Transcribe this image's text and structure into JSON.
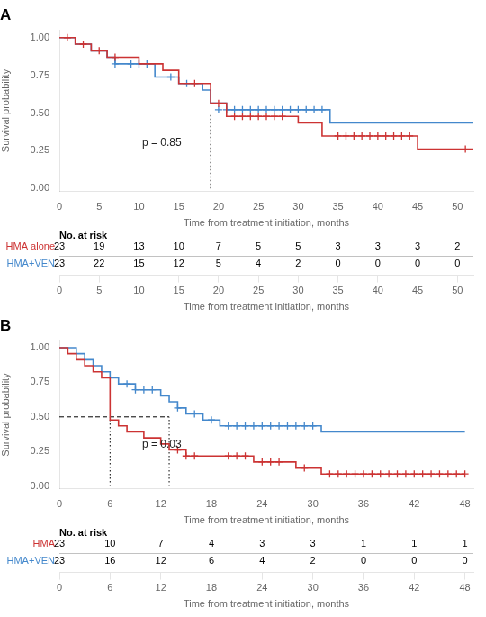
{
  "chart_data": [
    {
      "type": "step",
      "title": "A",
      "annotation": "p = 0.85",
      "xlabel": "Time from treatment initiation, months",
      "ylabel": "Survival probability",
      "xlim": [
        0,
        52
      ],
      "xticks": [
        0,
        5,
        10,
        15,
        20,
        25,
        30,
        35,
        40,
        45,
        50
      ],
      "ylim": [
        -0.02,
        1.05
      ],
      "yticks": [
        {
          "value": 0.0,
          "label": "0.00"
        },
        {
          "value": 0.25,
          "label": "0.25"
        },
        {
          "value": 0.5,
          "label": "0.50"
        },
        {
          "value": 0.75,
          "label": "0.75"
        },
        {
          "value": 1.0,
          "label": "1.00"
        }
      ],
      "grid": false,
      "median_x": [
        19
      ],
      "median_y": 0.5,
      "risk_table_title": "No. at risk",
      "risk_times": [
        0,
        5,
        10,
        15,
        20,
        25,
        30,
        35,
        40,
        45,
        50
      ],
      "series": [
        {
          "name": "HMA alone",
          "color": "#cc3333",
          "marker": "plus",
          "x": [
            0,
            2,
            4,
            6,
            10,
            13,
            15,
            19,
            21,
            30,
            33,
            45,
            52
          ],
          "values": [
            1.0,
            0.957,
            0.913,
            0.87,
            0.826,
            0.783,
            0.696,
            0.565,
            0.478,
            0.435,
            0.348,
            0.261,
            0.261
          ],
          "censor_x": [
            1,
            3,
            5,
            7,
            17,
            20,
            22,
            23,
            24,
            25,
            26,
            27,
            28,
            35,
            36,
            37,
            38,
            39,
            40,
            41,
            42,
            43,
            44,
            51
          ],
          "censor_values": [
            1.0,
            0.957,
            0.913,
            0.87,
            0.696,
            0.565,
            0.478,
            0.478,
            0.478,
            0.478,
            0.478,
            0.478,
            0.478,
            0.348,
            0.348,
            0.348,
            0.348,
            0.348,
            0.348,
            0.348,
            0.348,
            0.348,
            0.348,
            0.261
          ],
          "at_risk": [
            23,
            19,
            13,
            10,
            7,
            5,
            5,
            3,
            3,
            3,
            2
          ]
        },
        {
          "name": "HMA+VEN",
          "color": "#4488cc",
          "marker": "plus",
          "x": [
            0,
            2,
            4,
            6,
            7,
            12,
            15,
            18,
            19,
            21,
            34,
            52
          ],
          "values": [
            1.0,
            0.957,
            0.913,
            0.87,
            0.826,
            0.739,
            0.696,
            0.652,
            0.565,
            0.522,
            0.435,
            0.435
          ],
          "censor_x": [
            7,
            9,
            10,
            11,
            14,
            16,
            20,
            21,
            22,
            23,
            24,
            25,
            26,
            27,
            28,
            29,
            30,
            31,
            32,
            33
          ],
          "censor_values": [
            0.826,
            0.826,
            0.826,
            0.826,
            0.739,
            0.696,
            0.522,
            0.522,
            0.522,
            0.522,
            0.522,
            0.522,
            0.522,
            0.522,
            0.522,
            0.522,
            0.522,
            0.522,
            0.522,
            0.522
          ],
          "at_risk": [
            23,
            22,
            15,
            12,
            5,
            4,
            2,
            0,
            0,
            0,
            0
          ]
        }
      ]
    },
    {
      "type": "step",
      "title": "B",
      "annotation": "p = 0.03",
      "xlabel": "Time from treatment initiation, months",
      "ylabel": "Survival probability",
      "xlim": [
        0,
        49
      ],
      "xticks": [
        0,
        6,
        12,
        18,
        24,
        30,
        36,
        42,
        48
      ],
      "ylim": [
        -0.02,
        1.05
      ],
      "yticks": [
        {
          "value": 0.0,
          "label": "0.00"
        },
        {
          "value": 0.25,
          "label": "0.25"
        },
        {
          "value": 0.5,
          "label": "0.50"
        },
        {
          "value": 0.75,
          "label": "0.75"
        },
        {
          "value": 1.0,
          "label": "1.00"
        }
      ],
      "grid": false,
      "median_x": [
        6,
        13
      ],
      "median_y": 0.5,
      "risk_table_title": "No. at risk",
      "risk_times": [
        0,
        6,
        12,
        18,
        24,
        30,
        36,
        42,
        48
      ],
      "series": [
        {
          "name": "HMA",
          "color": "#cc3333",
          "marker": "plus",
          "x": [
            0,
            1,
            2,
            3,
            4,
            5,
            6,
            7,
            8,
            10,
            12,
            13,
            15,
            23,
            28,
            31,
            48
          ],
          "values": [
            1.0,
            0.957,
            0.913,
            0.87,
            0.826,
            0.783,
            0.478,
            0.435,
            0.391,
            0.348,
            0.304,
            0.261,
            0.217,
            0.174,
            0.13,
            0.087,
            0.087
          ],
          "censor_x": [
            14,
            15,
            16,
            20,
            21,
            22,
            24,
            25,
            26,
            29,
            32,
            33,
            34,
            35,
            36,
            37,
            38,
            39,
            40,
            41,
            42,
            43,
            44,
            45,
            46,
            47,
            48
          ],
          "censor_values": [
            0.261,
            0.217,
            0.217,
            0.217,
            0.217,
            0.217,
            0.174,
            0.174,
            0.174,
            0.13,
            0.087,
            0.087,
            0.087,
            0.087,
            0.087,
            0.087,
            0.087,
            0.087,
            0.087,
            0.087,
            0.087,
            0.087,
            0.087,
            0.087,
            0.087,
            0.087,
            0.087
          ],
          "at_risk": [
            23,
            10,
            7,
            4,
            3,
            3,
            1,
            1,
            1
          ]
        },
        {
          "name": "HMA+VEN",
          "color": "#4488cc",
          "marker": "plus",
          "x": [
            0,
            2,
            3,
            4,
            5,
            6,
            7,
            9,
            12,
            13,
            14,
            15,
            17,
            19,
            31,
            48
          ],
          "values": [
            1.0,
            0.957,
            0.913,
            0.87,
            0.826,
            0.783,
            0.739,
            0.696,
            0.652,
            0.609,
            0.565,
            0.522,
            0.478,
            0.435,
            0.391,
            0.391
          ],
          "censor_x": [
            8,
            9,
            10,
            11,
            14,
            16,
            18,
            20,
            21,
            22,
            23,
            24,
            25,
            26,
            27,
            28,
            29,
            30
          ],
          "censor_values": [
            0.739,
            0.696,
            0.696,
            0.696,
            0.565,
            0.522,
            0.478,
            0.435,
            0.435,
            0.435,
            0.435,
            0.435,
            0.435,
            0.435,
            0.435,
            0.435,
            0.435,
            0.435
          ],
          "at_risk": [
            23,
            16,
            12,
            6,
            4,
            2,
            0,
            0,
            0
          ]
        }
      ]
    }
  ]
}
